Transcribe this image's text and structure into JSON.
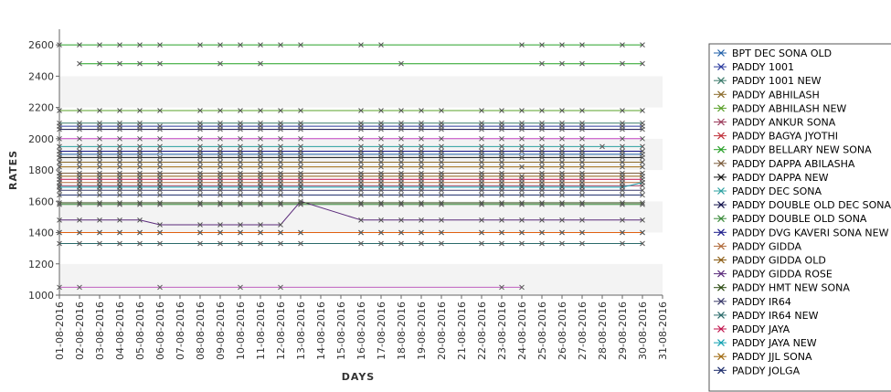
{
  "chart_data": {
    "type": "line",
    "xlabel": "DAYS",
    "ylabel": "RATES",
    "ylim": [
      1000,
      2700
    ],
    "yticks": [
      1000,
      1200,
      1400,
      1600,
      1800,
      2000,
      2200,
      2400,
      2600
    ],
    "grid": "horizontal-bands",
    "legend": "right",
    "x": [
      "01-08-2016",
      "02-08-2016",
      "03-08-2016",
      "04-08-2016",
      "05-08-2016",
      "06-08-2016",
      "07-08-2016",
      "08-08-2016",
      "09-08-2016",
      "10-08-2016",
      "11-08-2016",
      "12-08-2016",
      "13-08-2016",
      "14-08-2016",
      "15-08-2016",
      "16-08-2016",
      "17-08-2016",
      "18-08-2016",
      "19-08-2016",
      "20-08-2016",
      "21-08-2016",
      "22-08-2016",
      "23-08-2016",
      "24-08-2016",
      "25-08-2016",
      "26-08-2016",
      "27-08-2016",
      "28-08-2016",
      "29-08-2016",
      "30-08-2016",
      "31-08-2016"
    ],
    "series": [
      {
        "name": "BPT DEC SONA OLD",
        "color": "#1f5fa8",
        "values": [
          1900,
          1900,
          1900,
          1900,
          1900,
          null,
          null,
          1900,
          1900,
          1900,
          1900,
          1900,
          1900,
          null,
          null,
          1900,
          1900,
          1900,
          1900,
          1900,
          null,
          1900,
          1900,
          null,
          1900,
          1900,
          1900,
          null,
          1900,
          1900,
          null
        ]
      },
      {
        "name": "PADDY 1001",
        "color": "#2a3a9e",
        "values": [
          2080,
          2080,
          2080,
          2080,
          2080,
          2080,
          null,
          2080,
          2080,
          2080,
          2080,
          2080,
          2080,
          null,
          null,
          2080,
          2080,
          2080,
          2080,
          2080,
          null,
          2080,
          2080,
          2080,
          2080,
          2080,
          2080,
          null,
          2080,
          2080,
          null
        ]
      },
      {
        "name": "PADDY 1001 NEW",
        "color": "#3a7a6a",
        "values": [
          2100,
          2100,
          2100,
          2100,
          2100,
          null,
          null,
          2100,
          2100,
          2100,
          2100,
          2100,
          2100,
          null,
          null,
          2100,
          2100,
          2100,
          2100,
          2100,
          null,
          2100,
          2100,
          2100,
          2100,
          2100,
          2100,
          null,
          2100,
          2100,
          null
        ]
      },
      {
        "name": "PADDY ABHILASH",
        "color": "#8a6a2a",
        "values": [
          1850,
          1850,
          1850,
          1850,
          1850,
          1850,
          null,
          1850,
          1850,
          1850,
          1850,
          1850,
          1850,
          null,
          null,
          1850,
          1850,
          1850,
          1850,
          1850,
          null,
          1850,
          1850,
          null,
          1850,
          1850,
          1850,
          null,
          1850,
          1850,
          null
        ]
      },
      {
        "name": "PADDY ABHILASH NEW",
        "color": "#5aa02a",
        "values": [
          2180,
          2180,
          2180,
          2180,
          2180,
          2180,
          null,
          2180,
          2180,
          2180,
          2180,
          2180,
          2180,
          null,
          null,
          2180,
          2180,
          2180,
          2180,
          2180,
          null,
          2180,
          2180,
          2180,
          2180,
          2180,
          2180,
          null,
          2180,
          2180,
          null
        ]
      },
      {
        "name": "PADDY ANKUR SONA",
        "color": "#9a3a5a",
        "values": [
          1700,
          1700,
          1700,
          1700,
          1700,
          1700,
          null,
          1700,
          1700,
          1700,
          1700,
          1700,
          1700,
          null,
          null,
          1700,
          1700,
          1700,
          1700,
          1700,
          null,
          1700,
          1700,
          1700,
          1700,
          1700,
          1700,
          null,
          1700,
          1700,
          null
        ]
      },
      {
        "name": "PADDY BAGYA JYOTHI",
        "color": "#c0303a",
        "values": [
          1400,
          1400,
          1400,
          1400,
          1400,
          1400,
          null,
          1400,
          1400,
          1400,
          1400,
          1400,
          1400,
          null,
          null,
          1400,
          1400,
          1400,
          1400,
          1400,
          null,
          1400,
          1400,
          1400,
          1400,
          1400,
          1400,
          null,
          1400,
          1400,
          null
        ]
      },
      {
        "name": "PADDY BELLARY NEW SONA",
        "color": "#28a028",
        "values": [
          2600,
          2600,
          2600,
          2600,
          2600,
          2600,
          null,
          2600,
          2600,
          2600,
          2600,
          2600,
          2600,
          null,
          null,
          2600,
          2600,
          null,
          null,
          null,
          null,
          null,
          null,
          2600,
          2600,
          2600,
          2600,
          null,
          2600,
          2600,
          null
        ]
      },
      {
        "name": "PADDY DAPPA ABILASHA",
        "color": "#7a5a3a",
        "values": [
          1780,
          1780,
          1780,
          1780,
          1780,
          1780,
          null,
          1780,
          1780,
          1780,
          1780,
          1780,
          1780,
          null,
          null,
          1780,
          1780,
          1780,
          1780,
          1780,
          null,
          1780,
          1780,
          null,
          1780,
          1780,
          1780,
          null,
          1780,
          1780,
          null
        ]
      },
      {
        "name": "PADDY DAPPA NEW",
        "color": "#101010",
        "values": [
          1880,
          1880,
          1880,
          1880,
          1880,
          1880,
          null,
          1880,
          1880,
          1880,
          1880,
          1880,
          1880,
          null,
          null,
          1880,
          1880,
          1880,
          1880,
          1880,
          null,
          1880,
          1880,
          1880,
          1880,
          1880,
          1880,
          null,
          1880,
          1880,
          null
        ]
      },
      {
        "name": "PADDY DEC SONA",
        "color": "#2aa0a0",
        "values": [
          1950,
          1950,
          1950,
          1950,
          1950,
          1950,
          null,
          1950,
          1950,
          1950,
          1950,
          1950,
          1950,
          null,
          null,
          1950,
          1950,
          1950,
          1950,
          1950,
          null,
          1950,
          1950,
          1950,
          1950,
          1950,
          1950,
          1950,
          1950,
          1950,
          null
        ]
      },
      {
        "name": "PADDY DOUBLE OLD DEC SONA",
        "color": "#10104a",
        "values": [
          2060,
          2060,
          2060,
          2060,
          2060,
          2060,
          null,
          2060,
          2060,
          2060,
          2060,
          2060,
          2060,
          null,
          null,
          2060,
          2060,
          2060,
          2060,
          2060,
          null,
          2060,
          2060,
          2060,
          2060,
          2060,
          2060,
          null,
          2060,
          2060,
          null
        ]
      },
      {
        "name": "PADDY DOUBLE OLD SONA",
        "color": "#3a8a3a",
        "values": [
          1580,
          1580,
          1580,
          1580,
          1580,
          1580,
          null,
          1580,
          1580,
          1580,
          1580,
          1580,
          1580,
          null,
          null,
          1580,
          1580,
          1580,
          1580,
          1580,
          null,
          1580,
          1580,
          1580,
          1580,
          1580,
          1580,
          null,
          1580,
          1580,
          null
        ]
      },
      {
        "name": "PADDY DVG KAVERI SONA NEW",
        "color": "#1a1a8a",
        "values": [
          1920,
          1920,
          1920,
          1920,
          1920,
          1920,
          null,
          1920,
          1920,
          1920,
          1920,
          1920,
          1920,
          null,
          null,
          1920,
          1920,
          1920,
          1920,
          1920,
          null,
          1920,
          1920,
          1920,
          1920,
          1920,
          1920,
          null,
          1920,
          1920,
          null
        ]
      },
      {
        "name": "PADDY GIDDA",
        "color": "#b06a3a",
        "values": [
          1720,
          1720,
          1720,
          1720,
          1720,
          1720,
          null,
          1720,
          1720,
          1720,
          1720,
          1720,
          1720,
          null,
          null,
          1720,
          1720,
          1720,
          1720,
          1720,
          null,
          1720,
          1720,
          1720,
          1720,
          1720,
          1720,
          null,
          1720,
          1720,
          null
        ]
      },
      {
        "name": "PADDY GIDDA OLD",
        "color": "#8a5a10",
        "values": [
          1760,
          1760,
          1760,
          1760,
          1760,
          1760,
          null,
          1760,
          1760,
          1760,
          1760,
          1760,
          1760,
          null,
          null,
          1760,
          1760,
          1760,
          1760,
          1760,
          null,
          1760,
          1760,
          1760,
          1760,
          1760,
          1760,
          null,
          1760,
          1760,
          null
        ]
      },
      {
        "name": "PADDY GIDDA ROSE",
        "color": "#5a2a7a",
        "values": [
          1480,
          1480,
          1480,
          1480,
          1480,
          1450,
          null,
          1450,
          1450,
          1450,
          1450,
          1450,
          1600,
          null,
          null,
          1480,
          1480,
          1480,
          1480,
          1480,
          null,
          1480,
          1480,
          1480,
          1480,
          1480,
          1480,
          null,
          1480,
          1480,
          null
        ]
      },
      {
        "name": "PADDY HMT NEW SONA",
        "color": "#2a4a10",
        "values": [
          1590,
          1590,
          1590,
          1590,
          1590,
          1590,
          null,
          1590,
          1590,
          1590,
          1590,
          1590,
          1590,
          null,
          null,
          1590,
          1590,
          1590,
          1590,
          1590,
          null,
          1590,
          1590,
          1590,
          1590,
          1590,
          1590,
          null,
          1590,
          1590,
          null
        ]
      },
      {
        "name": "PADDY IR64",
        "color": "#3a3a6a",
        "values": [
          1670,
          1670,
          1670,
          1670,
          1670,
          1670,
          null,
          1670,
          1670,
          1670,
          1670,
          1670,
          1670,
          null,
          null,
          1670,
          1670,
          1670,
          1670,
          1670,
          null,
          1670,
          1670,
          1670,
          1670,
          1670,
          1670,
          null,
          1670,
          1670,
          null
        ]
      },
      {
        "name": "PADDY IR64 NEW",
        "color": "#2a6a6a",
        "values": [
          1330,
          1330,
          1330,
          1330,
          1330,
          1330,
          null,
          1330,
          1330,
          1330,
          1330,
          1330,
          1330,
          null,
          null,
          1330,
          1330,
          1330,
          1330,
          1330,
          null,
          1330,
          1330,
          1330,
          1330,
          1330,
          1330,
          null,
          1330,
          1330,
          null
        ]
      },
      {
        "name": "PADDY JAYA",
        "color": "#c0104a",
        "values": [
          1740,
          1740,
          1740,
          1740,
          1740,
          1740,
          null,
          1740,
          1740,
          1740,
          1740,
          1740,
          1740,
          null,
          null,
          1740,
          1740,
          1740,
          1740,
          1740,
          null,
          1740,
          1740,
          1740,
          1740,
          1740,
          1740,
          null,
          1740,
          1740,
          null
        ]
      },
      {
        "name": "PADDY JAYA NEW",
        "color": "#10a0b0",
        "values": [
          1690,
          1690,
          1690,
          1690,
          1690,
          1690,
          null,
          1690,
          1690,
          1690,
          1690,
          1690,
          1690,
          null,
          null,
          1690,
          1690,
          1690,
          1690,
          1690,
          null,
          1690,
          1690,
          1690,
          1690,
          1690,
          1690,
          null,
          1690,
          1720,
          null
        ]
      },
      {
        "name": "PADDY JJL SONA",
        "color": "#a06a10",
        "values": [
          1820,
          1820,
          1820,
          1820,
          1820,
          1820,
          null,
          1820,
          1820,
          1820,
          1820,
          1820,
          1820,
          null,
          null,
          1820,
          1820,
          1820,
          1820,
          1820,
          null,
          1820,
          1820,
          1820,
          1820,
          1820,
          1820,
          null,
          1820,
          1820,
          null
        ]
      },
      {
        "name": "PADDY JOLGA",
        "color": "#1a2a6a",
        "values": [
          1640,
          1640,
          1640,
          1640,
          1640,
          1640,
          null,
          1640,
          1640,
          1640,
          1640,
          1640,
          1640,
          null,
          null,
          1640,
          1640,
          1640,
          1640,
          1640,
          null,
          1640,
          1640,
          1640,
          1640,
          1640,
          1640,
          null,
          1640,
          1640,
          null
        ]
      },
      {
        "name": "",
        "color": "#20a020",
        "values": [
          null,
          2480,
          2480,
          2480,
          2480,
          2480,
          null,
          null,
          2480,
          null,
          2480,
          null,
          null,
          null,
          null,
          null,
          null,
          2480,
          null,
          null,
          null,
          null,
          null,
          null,
          2480,
          2480,
          2480,
          null,
          2480,
          2480,
          null
        ]
      },
      {
        "name": "",
        "color": "#c040c0",
        "values": [
          2000,
          2000,
          2000,
          2000,
          2000,
          2000,
          null,
          2000,
          2000,
          2000,
          2000,
          2000,
          2000,
          null,
          null,
          2000,
          2000,
          2000,
          2000,
          2000,
          null,
          2000,
          2000,
          2000,
          2000,
          2000,
          2000,
          null,
          2000,
          2000,
          null
        ]
      },
      {
        "name": "",
        "color": "#c060c0",
        "values": [
          1050,
          1050,
          null,
          null,
          null,
          1050,
          null,
          null,
          null,
          1050,
          null,
          1050,
          null,
          null,
          null,
          null,
          null,
          null,
          null,
          null,
          null,
          null,
          1050,
          1050,
          null,
          null,
          null,
          null,
          null,
          null,
          null
        ]
      },
      {
        "name": "",
        "color": "#e06010",
        "values": [
          1400,
          1400,
          1400,
          1400,
          1400,
          1400,
          null,
          1400,
          1400,
          1400,
          1400,
          1400,
          1400,
          null,
          null,
          1400,
          1400,
          1400,
          1400,
          1400,
          null,
          1400,
          1400,
          1400,
          1400,
          1400,
          1400,
          null,
          1400,
          1400,
          null
        ]
      }
    ]
  }
}
